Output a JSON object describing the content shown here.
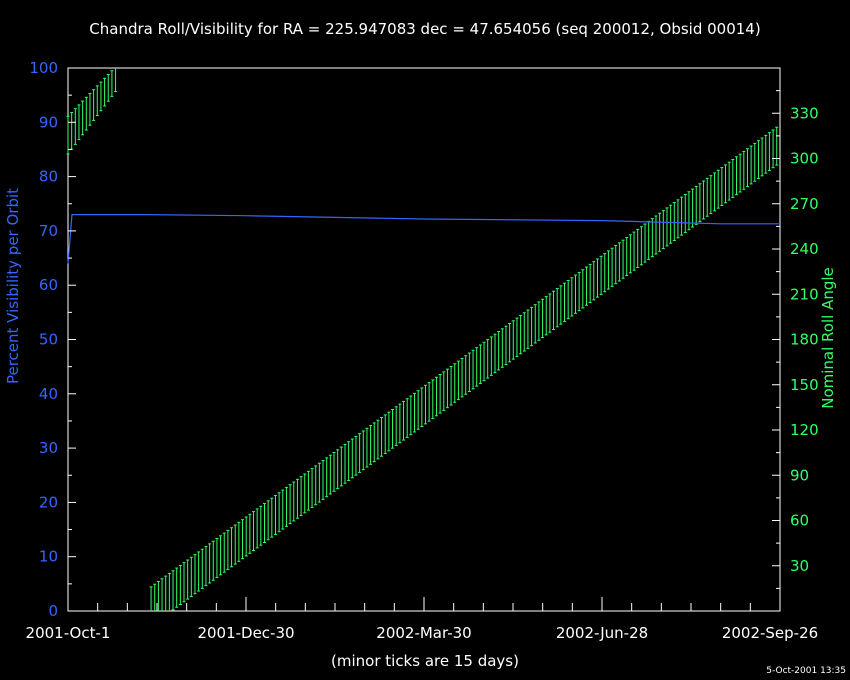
{
  "chart_data": {
    "type": "line",
    "title": "Chandra Roll/Visibility for RA = 225.947083 dec = 47.654056 (seq 200012, Obsid 00014)",
    "xlabel": "(minor ticks are 15 days)",
    "ylabel_left": "Percent Visibility per Orbit",
    "ylabel_right": "Nominal Roll Angle",
    "timestamp": "5-Oct-2001 13:35",
    "x_range_days": [
      0,
      360
    ],
    "x_ticks": [
      {
        "day": 0,
        "label": "2001-Oct-1"
      },
      {
        "day": 90,
        "label": "2001-Dec-30"
      },
      {
        "day": 180,
        "label": "2002-Mar-30"
      },
      {
        "day": 270,
        "label": "2002-Jun-28"
      },
      {
        "day": 360,
        "label": "2002-Sep-26"
      }
    ],
    "y_left_range": [
      0,
      100
    ],
    "y_left_ticks": [
      "0",
      "10",
      "20",
      "30",
      "40",
      "50",
      "60",
      "70",
      "80",
      "90",
      "100"
    ],
    "y_right_range": [
      0,
      360
    ],
    "y_right_ticks": [
      "30",
      "60",
      "90",
      "120",
      "150",
      "180",
      "210",
      "240",
      "270",
      "300",
      "330"
    ],
    "colors": {
      "background": "#000000",
      "axes": "#ffffff",
      "visibility": "#3366ff",
      "roll": "#33ff66"
    },
    "series": [
      {
        "name": "Percent Visibility per Orbit",
        "axis": "left",
        "style": "line",
        "x": [
          0,
          2,
          4,
          40,
          90,
          180,
          270,
          330,
          360
        ],
        "y": [
          64,
          73,
          73,
          73,
          72.8,
          72.2,
          71.9,
          71.3,
          71.3
        ]
      },
      {
        "name": "Nominal Roll Angle",
        "axis": "right",
        "style": "errorbar",
        "segments": [
          {
            "x0": 0,
            "x1": 25,
            "lo0": 303,
            "lo1": 346,
            "hi0": 328,
            "hi1": 362
          },
          {
            "x0": 42,
            "x1": 368,
            "lo0": -10,
            "lo1": 305,
            "hi0": 16,
            "hi1": 330
          }
        ]
      }
    ]
  }
}
